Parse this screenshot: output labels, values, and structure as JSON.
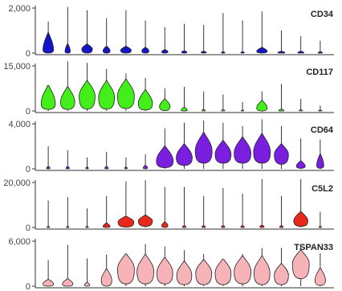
{
  "chart_data": [
    {
      "type": "violin",
      "title": "CD34",
      "color": "#1414c8",
      "ylim": [
        0,
        2000
      ],
      "yticks": [
        0,
        2000
      ],
      "ytick_labels": [
        "0",
        "2,000"
      ],
      "clusters": 15,
      "max": [
        1400,
        2050,
        1900,
        1550,
        1900,
        1450,
        1150,
        1300,
        1250,
        1780,
        1450,
        1850,
        1000,
        750,
        550
      ],
      "violins": [
        {
          "base": 0,
          "widest_at": 150,
          "width": 0.6,
          "top": 900
        },
        {
          "base": 0,
          "widest_at": 80,
          "width": 0.3,
          "top": 400
        },
        {
          "base": 0,
          "widest_at": 180,
          "width": 0.6,
          "top": 400
        },
        {
          "base": 0,
          "widest_at": 100,
          "width": 0.4,
          "top": 300
        },
        {
          "base": 0,
          "widest_at": 120,
          "width": 0.6,
          "top": 300
        },
        {
          "base": 0,
          "widest_at": 100,
          "width": 0.4,
          "top": 250
        },
        {
          "base": 0,
          "widest_at": 60,
          "width": 0.35,
          "top": 150
        },
        {
          "base": 0,
          "widest_at": 40,
          "width": 0.3,
          "top": 100
        },
        {
          "base": 0,
          "widest_at": 30,
          "width": 0.3,
          "top": 80
        },
        {
          "base": 0,
          "widest_at": 20,
          "width": 0.2,
          "top": 60
        },
        {
          "base": 0,
          "widest_at": 20,
          "width": 0.2,
          "top": 60
        },
        {
          "base": 0,
          "widest_at": 80,
          "width": 0.6,
          "top": 250
        },
        {
          "base": 0,
          "widest_at": 20,
          "width": 0.4,
          "top": 80
        },
        {
          "base": 0,
          "widest_at": 20,
          "width": 0.35,
          "top": 80
        },
        {
          "base": 0,
          "widest_at": 10,
          "width": 0.25,
          "top": 60
        }
      ]
    },
    {
      "type": "violin",
      "title": "CD117",
      "color": "#44ee1a",
      "ylim": [
        0,
        15000
      ],
      "yticks": [
        0,
        15000
      ],
      "ytick_labels": [
        "0",
        "15,000"
      ],
      "clusters": 15,
      "max": [
        8500,
        16500,
        16000,
        14000,
        12500,
        11000,
        7500,
        8000,
        6500,
        5500,
        3000,
        6500,
        9000,
        4000,
        1800
      ],
      "violins": [
        {
          "base": 500,
          "widest_at": 2500,
          "width": 0.8,
          "top": 8500
        },
        {
          "base": 500,
          "widest_at": 3000,
          "width": 0.8,
          "top": 8000
        },
        {
          "base": 600,
          "widest_at": 5000,
          "width": 0.9,
          "top": 10000
        },
        {
          "base": 600,
          "widest_at": 4500,
          "width": 0.9,
          "top": 10000
        },
        {
          "base": 800,
          "widest_at": 5000,
          "width": 0.95,
          "top": 10500
        },
        {
          "base": 300,
          "widest_at": 2500,
          "width": 0.8,
          "top": 7000
        },
        {
          "base": 100,
          "widest_at": 1500,
          "width": 0.6,
          "top": 4000
        },
        {
          "base": 0,
          "widest_at": 300,
          "width": 0.35,
          "top": 1200
        },
        {
          "base": 0,
          "widest_at": 100,
          "width": 0.2,
          "top": 500
        },
        {
          "base": 0,
          "widest_at": 100,
          "width": 0.2,
          "top": 400
        },
        {
          "base": 0,
          "widest_at": 80,
          "width": 0.15,
          "top": 300
        },
        {
          "base": 0,
          "widest_at": 1000,
          "width": 0.6,
          "top": 3500
        },
        {
          "base": 0,
          "widest_at": 150,
          "width": 0.3,
          "top": 600
        },
        {
          "base": 0,
          "widest_at": 100,
          "width": 0.2,
          "top": 400
        },
        {
          "base": 0,
          "widest_at": 80,
          "width": 0.2,
          "top": 300
        }
      ]
    },
    {
      "type": "violin",
      "title": "CD64",
      "color": "#7a1ee0",
      "ylim": [
        0,
        4000
      ],
      "yticks": [
        0,
        4000
      ],
      "ytick_labels": [
        "0",
        "4,000"
      ],
      "clusters": 15,
      "max": [
        2000,
        1650,
        1000,
        1500,
        1000,
        1300,
        3600,
        4100,
        4300,
        4100,
        3800,
        4400,
        3800,
        2700,
        2600
      ],
      "violins": [
        {
          "base": 0,
          "widest_at": 50,
          "width": 0.2,
          "top": 200
        },
        {
          "base": 0,
          "widest_at": 50,
          "width": 0.2,
          "top": 200
        },
        {
          "base": 0,
          "widest_at": 40,
          "width": 0.15,
          "top": 150
        },
        {
          "base": 0,
          "widest_at": 50,
          "width": 0.2,
          "top": 200
        },
        {
          "base": 0,
          "widest_at": 50,
          "width": 0.15,
          "top": 150
        },
        {
          "base": 0,
          "widest_at": 80,
          "width": 0.25,
          "top": 300
        },
        {
          "base": 100,
          "widest_at": 700,
          "width": 0.95,
          "top": 2000
        },
        {
          "base": 300,
          "widest_at": 1000,
          "width": 0.9,
          "top": 2200
        },
        {
          "base": 500,
          "widest_at": 1600,
          "width": 0.95,
          "top": 3200
        },
        {
          "base": 500,
          "widest_at": 1300,
          "width": 0.9,
          "top": 2500
        },
        {
          "base": 500,
          "widest_at": 1400,
          "width": 0.95,
          "top": 2800
        },
        {
          "base": 500,
          "widest_at": 1500,
          "width": 0.95,
          "top": 3100
        },
        {
          "base": 400,
          "widest_at": 1300,
          "width": 0.8,
          "top": 2200
        },
        {
          "base": 50,
          "widest_at": 250,
          "width": 0.5,
          "top": 700
        },
        {
          "base": 50,
          "widest_at": 300,
          "width": 0.4,
          "top": 1300
        }
      ]
    },
    {
      "type": "violin",
      "title": "C5L2",
      "color": "#e8281a",
      "ylim": [
        0,
        20000
      ],
      "yticks": [
        0,
        20000
      ],
      "ytick_labels": [
        "0",
        "20,000"
      ],
      "clusters": 15,
      "max": [
        12000,
        13500,
        8500,
        14000,
        20500,
        21000,
        18000,
        18000,
        14000,
        17500,
        15000,
        21500,
        14000,
        21500,
        7000
      ],
      "violins": [
        {
          "base": 0,
          "widest_at": 100,
          "width": 0.15,
          "top": 500
        },
        {
          "base": 0,
          "widest_at": 100,
          "width": 0.15,
          "top": 500
        },
        {
          "base": 0,
          "widest_at": 100,
          "width": 0.15,
          "top": 500
        },
        {
          "base": 0,
          "widest_at": 500,
          "width": 0.4,
          "top": 2000
        },
        {
          "base": 200,
          "widest_at": 2500,
          "width": 0.9,
          "top": 5000
        },
        {
          "base": 500,
          "widest_at": 3000,
          "width": 0.8,
          "top": 5500
        },
        {
          "base": 0,
          "widest_at": 800,
          "width": 0.35,
          "top": 2500
        },
        {
          "base": 0,
          "widest_at": 200,
          "width": 0.2,
          "top": 800
        },
        {
          "base": 0,
          "widest_at": 200,
          "width": 0.2,
          "top": 800
        },
        {
          "base": 0,
          "widest_at": 200,
          "width": 0.2,
          "top": 800
        },
        {
          "base": 0,
          "widest_at": 200,
          "width": 0.2,
          "top": 800
        },
        {
          "base": 0,
          "widest_at": 300,
          "width": 0.25,
          "top": 1000
        },
        {
          "base": 0,
          "widest_at": 200,
          "width": 0.2,
          "top": 800
        },
        {
          "base": 500,
          "widest_at": 3000,
          "width": 0.8,
          "top": 7000
        },
        {
          "base": 0,
          "widest_at": 100,
          "width": 0.15,
          "top": 500
        }
      ]
    },
    {
      "type": "violin",
      "title": "TSPAN33",
      "color": "#f7b4b8",
      "ylim": [
        0,
        6000
      ],
      "yticks": [
        0,
        6000
      ],
      "ytick_labels": [
        "0",
        "6,000"
      ],
      "clusters": 15,
      "max": [
        3500,
        5500,
        3700,
        4200,
        3800,
        5600,
        5300,
        4800,
        4300,
        3600,
        4300,
        5100,
        5100,
        5500,
        4400
      ],
      "violins": [
        {
          "base": 0,
          "widest_at": 300,
          "width": 0.6,
          "top": 900
        },
        {
          "base": 0,
          "widest_at": 300,
          "width": 0.6,
          "top": 1000
        },
        {
          "base": 0,
          "widest_at": 150,
          "width": 0.3,
          "top": 500
        },
        {
          "base": 0,
          "widest_at": 800,
          "width": 0.6,
          "top": 2300
        },
        {
          "base": 300,
          "widest_at": 2300,
          "width": 0.95,
          "top": 4300
        },
        {
          "base": 300,
          "widest_at": 2000,
          "width": 0.95,
          "top": 4200
        },
        {
          "base": 300,
          "widest_at": 1800,
          "width": 0.9,
          "top": 3800
        },
        {
          "base": 200,
          "widest_at": 1500,
          "width": 0.85,
          "top": 3300
        },
        {
          "base": 200,
          "widest_at": 1800,
          "width": 0.9,
          "top": 3500
        },
        {
          "base": 200,
          "widest_at": 1800,
          "width": 0.9,
          "top": 3600
        },
        {
          "base": 300,
          "widest_at": 2000,
          "width": 0.95,
          "top": 4000
        },
        {
          "base": 200,
          "widest_at": 1800,
          "width": 0.9,
          "top": 4000
        },
        {
          "base": 200,
          "widest_at": 1500,
          "width": 0.8,
          "top": 3000
        },
        {
          "base": 1000,
          "widest_at": 3000,
          "width": 0.95,
          "top": 4800
        },
        {
          "base": 100,
          "widest_at": 800,
          "width": 0.6,
          "top": 2400
        }
      ]
    }
  ]
}
